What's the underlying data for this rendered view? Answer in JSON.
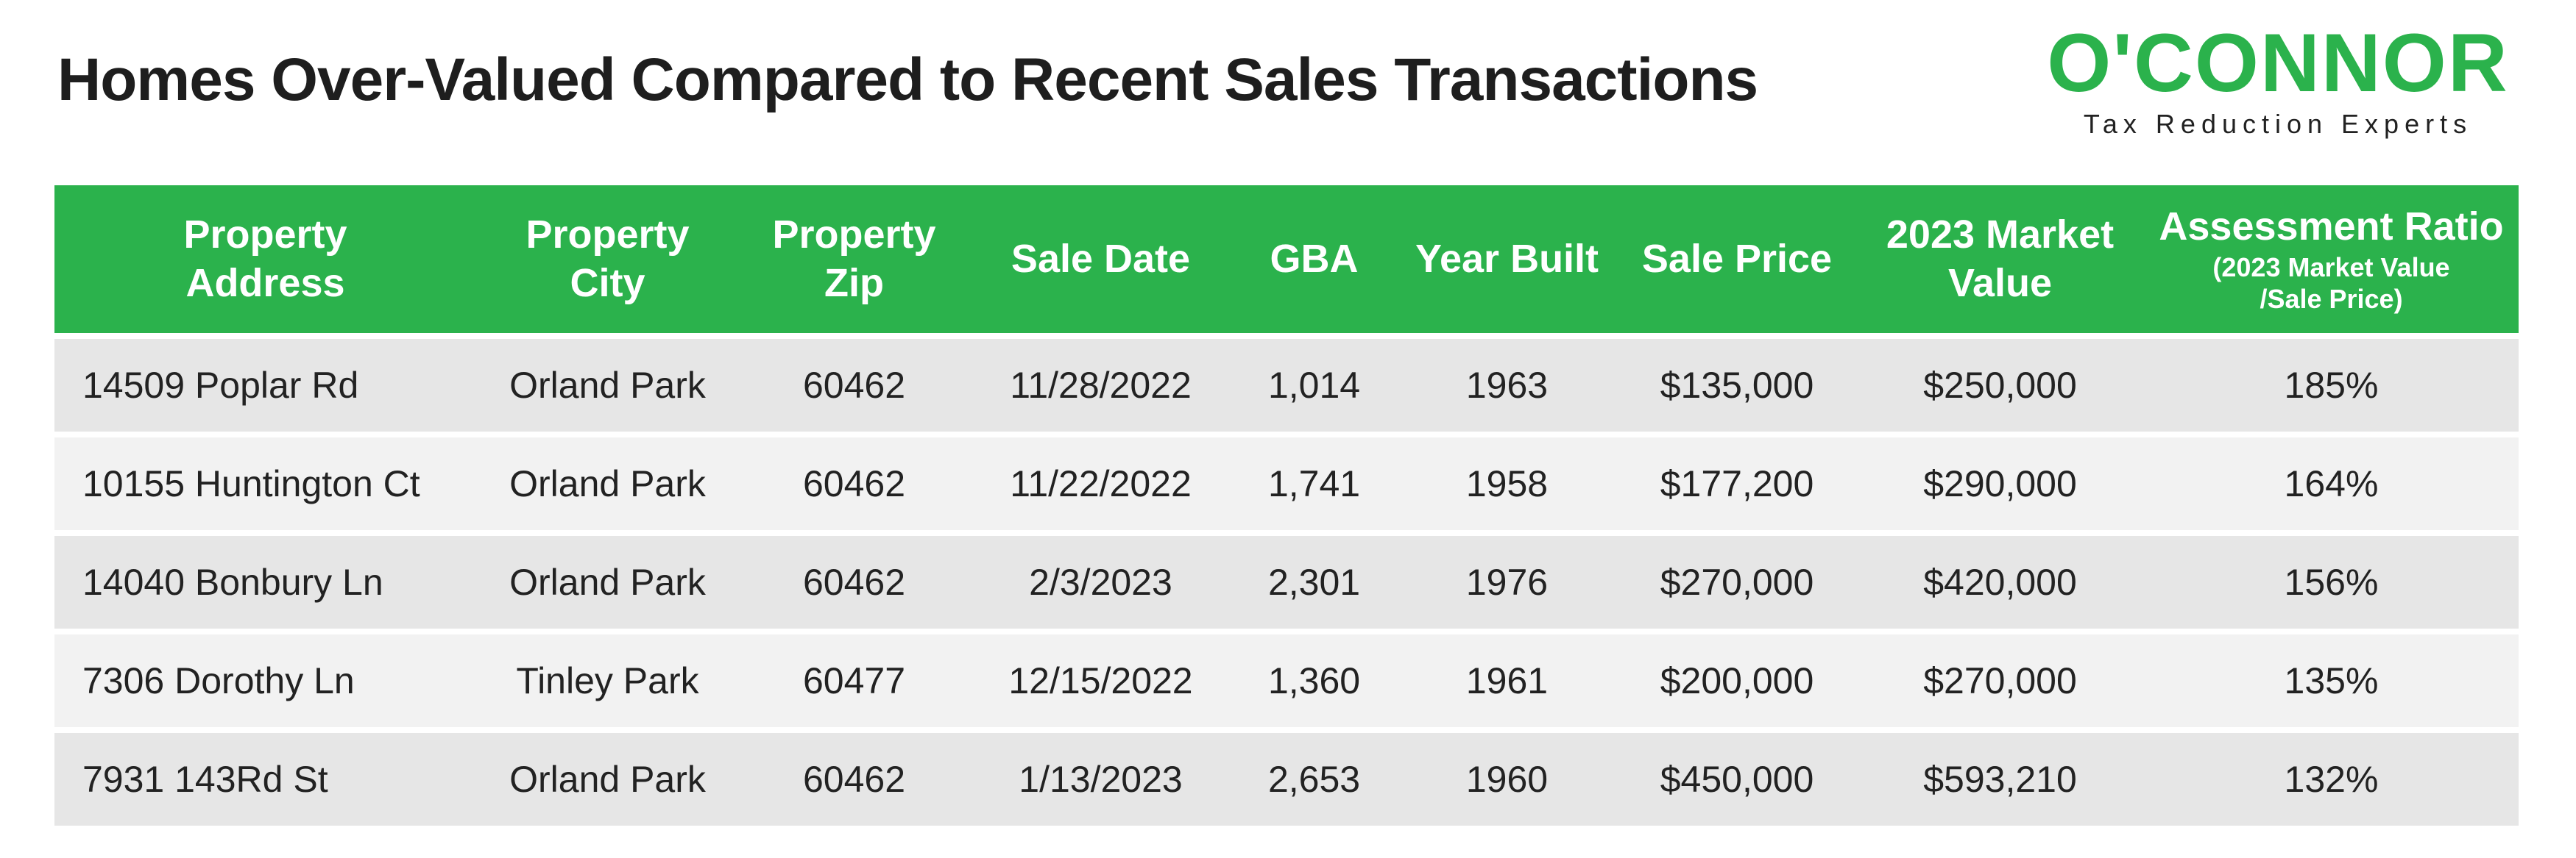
{
  "header": {
    "title": "Homes Over-Valued Compared to Recent Sales Transactions"
  },
  "logo": {
    "name": "O'CONNOR",
    "tagline": "Tax Reduction Experts"
  },
  "table": {
    "columns": [
      {
        "lines": [
          "Property",
          "Address"
        ]
      },
      {
        "lines": [
          "Property",
          "City"
        ]
      },
      {
        "lines": [
          "Property",
          "Zip"
        ]
      },
      {
        "lines": [
          "Sale Date"
        ]
      },
      {
        "lines": [
          "GBA"
        ]
      },
      {
        "lines": [
          "Year Built"
        ]
      },
      {
        "lines": [
          "Sale Price"
        ]
      },
      {
        "lines": [
          "2023 Market",
          "Value"
        ]
      },
      {
        "lines": [
          "Assessment Ratio"
        ],
        "note": [
          "(2023 Market Value",
          "/Sale Price)"
        ]
      }
    ],
    "rows": [
      [
        "14509 Poplar Rd",
        "Orland Park",
        "60462",
        "11/28/2022",
        "1,014",
        "1963",
        "$135,000",
        "$250,000",
        "185%"
      ],
      [
        "10155 Huntington Ct",
        "Orland Park",
        "60462",
        "11/22/2022",
        "1,741",
        "1958",
        "$177,200",
        "$290,000",
        "164%"
      ],
      [
        "14040 Bonbury Ln",
        "Orland Park",
        "60462",
        "2/3/2023",
        "2,301",
        "1976",
        "$270,000",
        "$420,000",
        "156%"
      ],
      [
        "7306 Dorothy Ln",
        "Tinley Park",
        "60477",
        "12/15/2022",
        "1,360",
        "1961",
        "$200,000",
        "$270,000",
        "135%"
      ],
      [
        "7931 143Rd St",
        "Orland Park",
        "60462",
        "1/13/2023",
        "2,653",
        "1960",
        "$450,000",
        "$593,210",
        "132%"
      ]
    ]
  }
}
